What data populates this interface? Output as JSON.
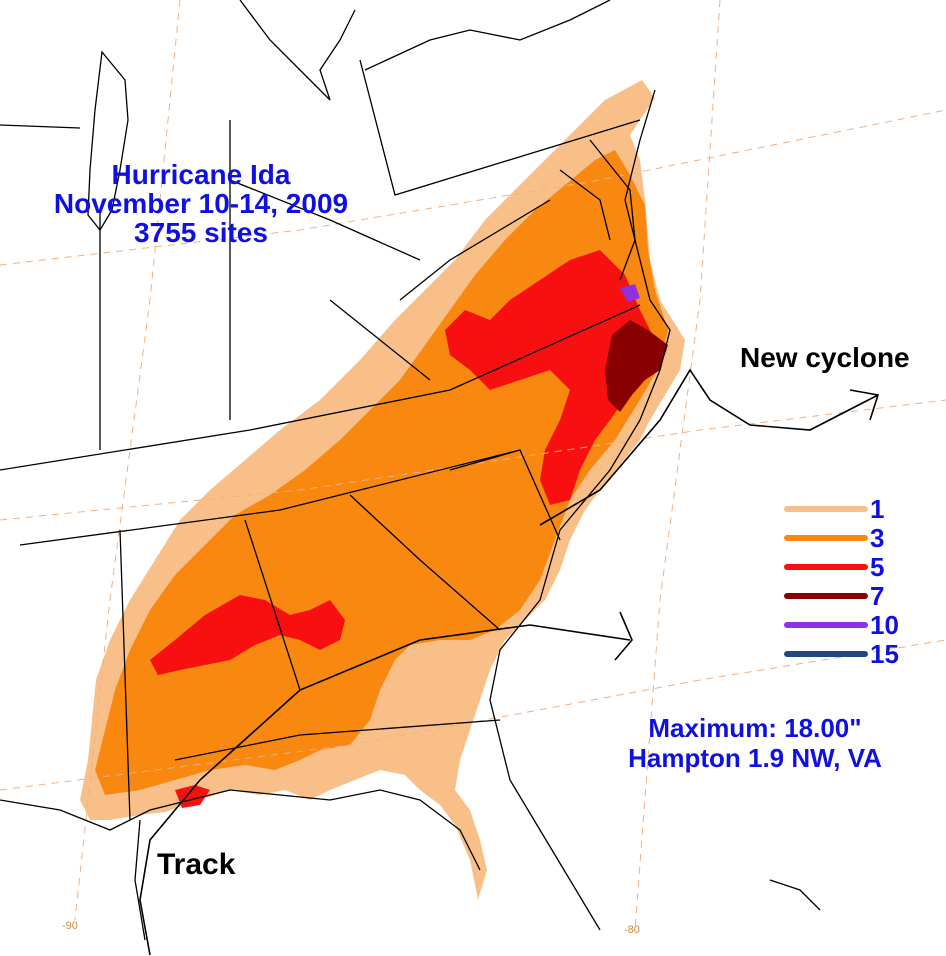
{
  "title": {
    "line1": "Hurricane Ida",
    "line2": "November 10-14, 2009",
    "line3": "3755 sites"
  },
  "annotations": {
    "new_cyclone": "New cyclone",
    "track": "Track"
  },
  "maximum": {
    "line1": "Maximum:  18.00\"",
    "line2": "Hampton 1.9 NW, VA"
  },
  "legend": [
    {
      "value": "1",
      "color": "#f8c088"
    },
    {
      "value": "3",
      "color": "#f88810"
    },
    {
      "value": "5",
      "color": "#f81010"
    },
    {
      "value": "7",
      "color": "#880000"
    },
    {
      "value": "10",
      "color": "#9030e0"
    },
    {
      "value": "15",
      "color": "#204880"
    }
  ],
  "longitude_labels": {
    "left": "-90",
    "right": "-80"
  }
}
